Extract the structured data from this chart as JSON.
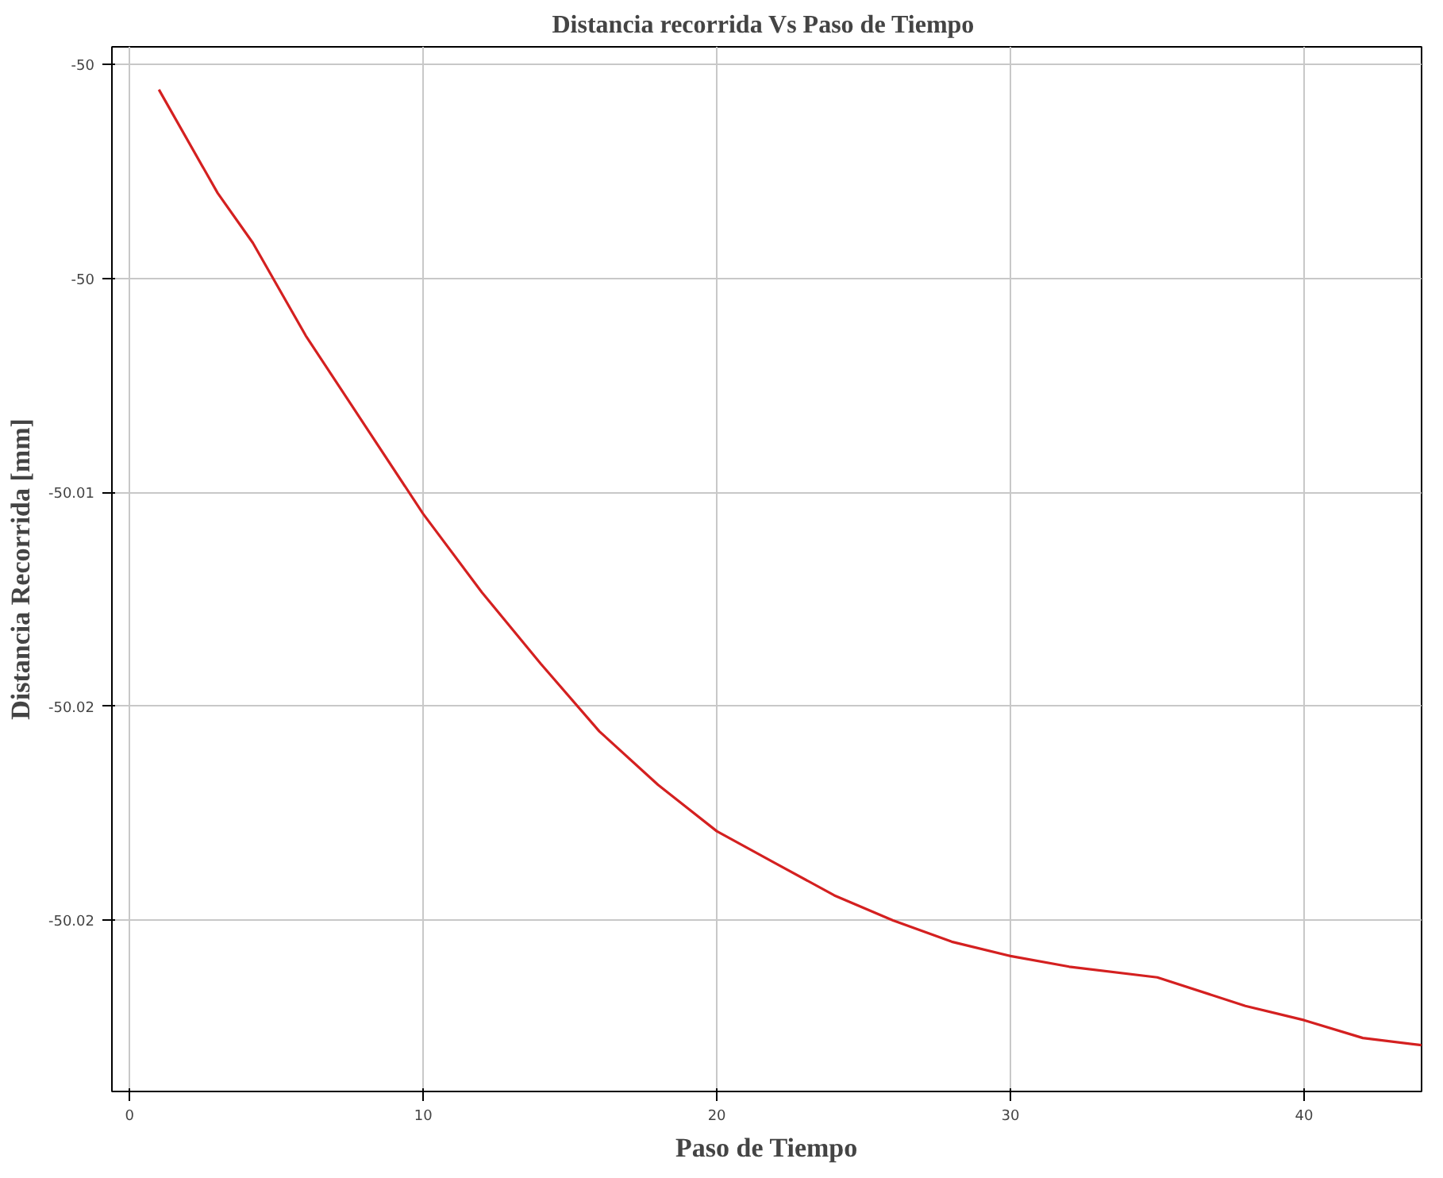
{
  "chart_data": {
    "type": "line",
    "title": "Distancia recorrida Vs  Paso de Tiempo",
    "xlabel": "Paso de Tiempo",
    "ylabel": "Distancia Recorrida [mm]",
    "x": [
      1,
      3,
      4.2,
      6,
      8,
      10,
      12,
      14,
      16,
      18,
      20,
      22,
      24,
      26,
      28,
      30,
      32,
      35,
      38,
      40,
      42,
      44
    ],
    "series": [
      {
        "color": "#d42020",
        "values": [
          -49.9987,
          -50.0016,
          -50.003,
          -50.0056,
          -50.0081,
          -50.0106,
          -50.0128,
          -50.0148,
          -50.0167,
          -50.0182,
          -50.0195,
          -50.0204,
          -50.0213,
          -50.022,
          -50.0226,
          -50.023,
          -50.0233,
          -50.0236,
          -50.0244,
          -50.0248,
          -50.0253,
          -50.0255
        ]
      }
    ],
    "xlim": [
      -0.6,
      44
    ],
    "xticks": [
      0,
      10,
      20,
      30,
      40
    ],
    "ylim": [
      -50.0268,
      -49.9975
    ],
    "yticks": [
      {
        "value": -49.998,
        "label": "-50"
      },
      {
        "value": -50.004,
        "label": "-50"
      },
      {
        "value": -50.01,
        "label": "-50.01"
      },
      {
        "value": -50.016,
        "label": "-50.02"
      },
      {
        "value": -50.022,
        "label": "-50.02"
      }
    ],
    "grid": true,
    "marker": "none",
    "line_style": "solid"
  }
}
